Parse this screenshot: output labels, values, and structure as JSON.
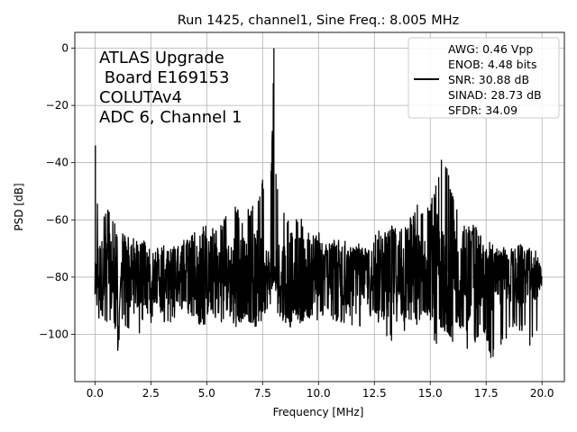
{
  "chart_data": {
    "type": "line",
    "title": "Run 1425, channel1, Sine Freq.: 8.005 MHz",
    "xlabel": "Frequency [MHz]",
    "ylabel": "PSD [dB]",
    "xlim": [
      -0.9,
      21.0
    ],
    "ylim": [
      -116.5,
      5.5
    ],
    "xticks": [
      0.0,
      2.5,
      5.0,
      7.5,
      10.0,
      12.5,
      15.0,
      17.5,
      20.0
    ],
    "xtick_labels": [
      "0.0",
      "2.5",
      "5.0",
      "7.5",
      "10.0",
      "12.5",
      "15.0",
      "17.5",
      "20.0"
    ],
    "yticks": [
      0,
      -20,
      -40,
      -60,
      -80,
      -100
    ],
    "ytick_labels": [
      "0",
      "−20",
      "−40",
      "−60",
      "−80",
      "−100"
    ],
    "grid": true,
    "annotation_lines": [
      "ATLAS Upgrade",
      " Board E169153",
      "COLUTAv4",
      "ADC 6, Channel 1"
    ],
    "legend": {
      "placement": "top-right",
      "lines": [
        "AWG: 0.46 Vpp",
        "ENOB: 4.48 bits",
        "SNR: 30.88 dB",
        "SINAD: 28.73 dB",
        "SFDR: 34.09"
      ]
    },
    "series": [
      {
        "color": "#000000",
        "x": [
          0.0,
          0.02,
          0.06,
          0.1,
          0.2,
          0.35,
          0.5,
          0.75,
          1.0,
          1.02,
          1.25,
          1.5,
          1.75,
          2.0,
          2.25,
          2.5,
          2.75,
          3.0,
          3.25,
          3.5,
          3.75,
          4.0,
          4.25,
          4.5,
          4.75,
          5.0,
          5.25,
          5.5,
          5.75,
          6.0,
          6.25,
          6.5,
          6.75,
          7.0,
          7.25,
          7.5,
          7.75,
          7.9,
          8.005,
          8.1,
          8.25,
          8.5,
          8.75,
          9.0,
          9.25,
          9.5,
          9.75,
          10.0,
          10.25,
          10.5,
          10.75,
          11.0,
          11.25,
          11.5,
          11.75,
          12.0,
          12.25,
          12.5,
          12.75,
          13.0,
          13.25,
          13.5,
          13.75,
          14.0,
          14.25,
          14.5,
          14.75,
          15.0,
          15.25,
          15.5,
          15.75,
          16.0,
          16.25,
          16.5,
          16.75,
          17.0,
          17.25,
          17.5,
          17.75,
          18.0,
          18.25,
          18.5,
          18.75,
          19.0,
          19.25,
          19.5,
          19.75,
          20.0
        ],
        "y_upper": [
          -86,
          -34,
          -50,
          -52,
          -57,
          -58,
          -55,
          -57,
          -64,
          -106,
          -62,
          -65,
          -66,
          -68,
          -67,
          -69,
          -70,
          -67,
          -70,
          -67,
          -69,
          -66,
          -66,
          -64,
          -62,
          -62,
          -63,
          -61,
          -60,
          -56,
          -54,
          -58,
          -57,
          -55,
          -53,
          -46,
          -52,
          -40,
          0,
          -44,
          -56,
          -58,
          -57,
          -57,
          -60,
          -63,
          -65,
          -64,
          -66,
          -68,
          -66,
          -67,
          -67,
          -69,
          -68,
          -70,
          -68,
          -66,
          -63,
          -64,
          -60,
          -62,
          -60,
          -60,
          -55,
          -54,
          -57,
          -53,
          -48,
          -39,
          -42,
          -50,
          -55,
          -58,
          -60,
          -62,
          -65,
          -68,
          -66,
          -70,
          -68,
          -71,
          -69,
          -67,
          -70,
          -69,
          -71,
          -77
        ],
        "y_lower": [
          -88,
          -84,
          -90,
          -94,
          -96,
          -95,
          -98,
          -96,
          -100,
          -106,
          -97,
          -98,
          -96,
          -100,
          -94,
          -96,
          -93,
          -95,
          -98,
          -96,
          -97,
          -94,
          -96,
          -94,
          -98,
          -96,
          -95,
          -96,
          -98,
          -93,
          -99,
          -97,
          -95,
          -96,
          -98,
          -95,
          -92,
          -90,
          -82,
          -92,
          -95,
          -96,
          -98,
          -95,
          -97,
          -96,
          -100,
          -95,
          -94,
          -97,
          -96,
          -98,
          -95,
          -97,
          -94,
          -104,
          -96,
          -95,
          -98,
          -100,
          -104,
          -97,
          -99,
          -99,
          -102,
          -97,
          -95,
          -96,
          -108,
          -100,
          -101,
          -104,
          -97,
          -100,
          -109,
          -103,
          -100,
          -102,
          -110,
          -107,
          -103,
          -101,
          -97,
          -100,
          -99,
          -105,
          -103,
          -91
        ]
      }
    ]
  }
}
